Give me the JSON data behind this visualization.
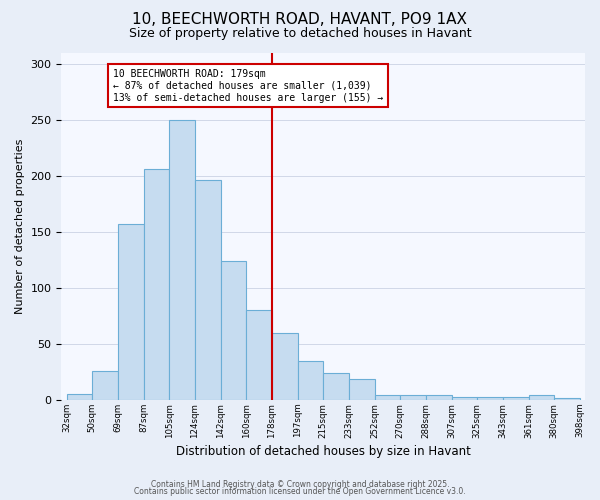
{
  "title": "10, BEECHWORTH ROAD, HAVANT, PO9 1AX",
  "subtitle": "Size of property relative to detached houses in Havant",
  "xlabel": "Distribution of detached houses by size in Havant",
  "ylabel": "Number of detached properties",
  "bin_labels": [
    "32sqm",
    "50sqm",
    "69sqm",
    "87sqm",
    "105sqm",
    "124sqm",
    "142sqm",
    "160sqm",
    "178sqm",
    "197sqm",
    "215sqm",
    "233sqm",
    "252sqm",
    "270sqm",
    "288sqm",
    "307sqm",
    "325sqm",
    "343sqm",
    "361sqm",
    "380sqm",
    "398sqm"
  ],
  "values": [
    5,
    26,
    157,
    206,
    250,
    196,
    124,
    80,
    60,
    35,
    24,
    19,
    4,
    4,
    4,
    3,
    3,
    3,
    4,
    2
  ],
  "bar_color": "#c6dcf0",
  "bar_edge_color": "#6baed6",
  "marker_label_index": 8,
  "marker_line_color": "#cc0000",
  "annotation_title": "10 BEECHWORTH ROAD: 179sqm",
  "annotation_line1": "← 87% of detached houses are smaller (1,039)",
  "annotation_line2": "13% of semi-detached houses are larger (155) →",
  "annotation_box_edge_color": "#cc0000",
  "ylim": [
    0,
    310
  ],
  "yticks": [
    0,
    50,
    100,
    150,
    200,
    250,
    300
  ],
  "footer1": "Contains HM Land Registry data © Crown copyright and database right 2025.",
  "footer2": "Contains public sector information licensed under the Open Government Licence v3.0.",
  "bg_color": "#e8eef8",
  "plot_bg_color": "#f5f8ff"
}
